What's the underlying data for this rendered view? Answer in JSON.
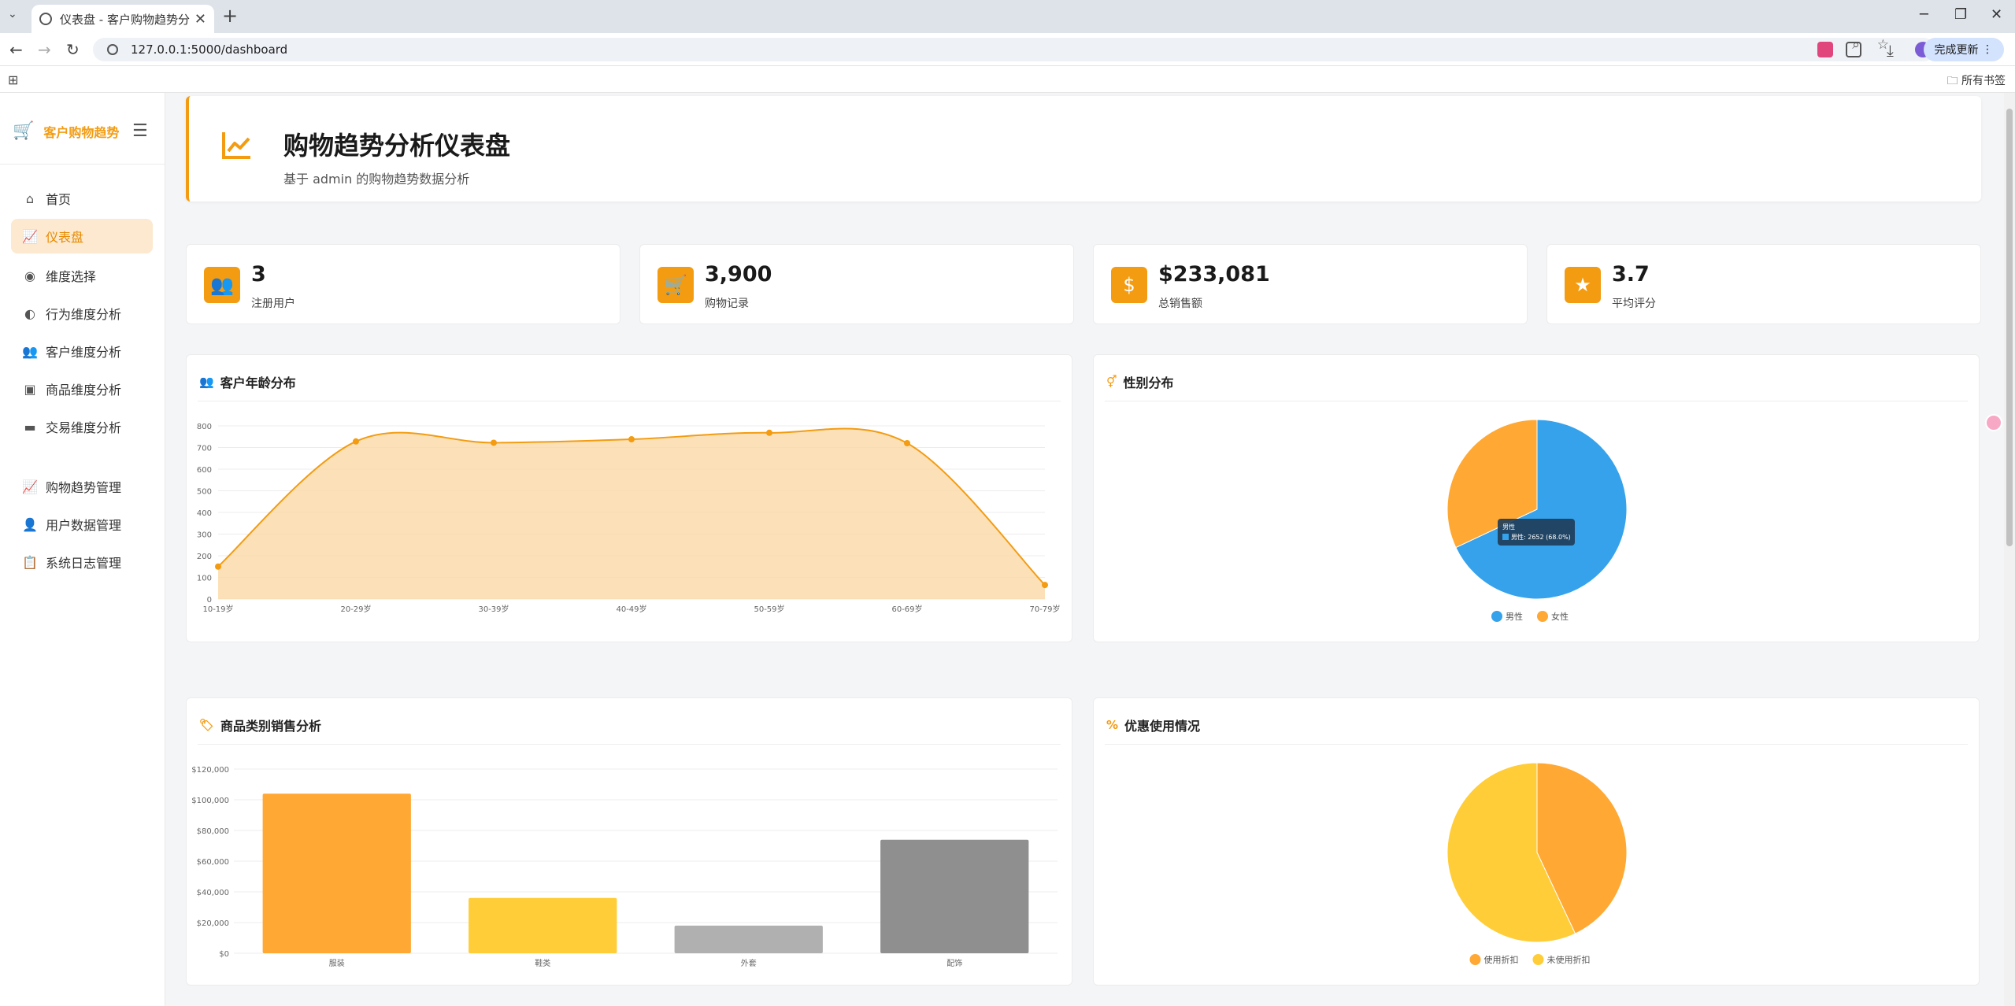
{
  "browser": {
    "tab_title": "仪表盘 - 客户购物趋势分析系统",
    "url": "127.0.0.1:5000/dashboard",
    "update_label": "完成更新",
    "bookmarks_label": "所有书签"
  },
  "sidebar": {
    "brand": "客户购物趋势",
    "items": [
      {
        "label": "首页",
        "icon": "home-icon"
      },
      {
        "label": "仪表盘",
        "icon": "chart-line-icon",
        "active": true
      },
      {
        "label": "维度选择",
        "icon": "compass-icon"
      },
      {
        "label": "行为维度分析",
        "icon": "brain-icon"
      },
      {
        "label": "客户维度分析",
        "icon": "users-icon"
      },
      {
        "label": "商品维度分析",
        "icon": "box-icon"
      },
      {
        "label": "交易维度分析",
        "icon": "credit-card-icon"
      },
      {
        "label": "购物趋势管理",
        "icon": "chart-line-icon"
      },
      {
        "label": "用户数据管理",
        "icon": "user-cog-icon"
      },
      {
        "label": "系统日志管理",
        "icon": "clipboard-icon"
      }
    ]
  },
  "header": {
    "title": "购物趋势分析仪表盘",
    "subtitle": "基于 admin 的购物趋势数据分析"
  },
  "stats": [
    {
      "value": "3",
      "label": "注册用户",
      "icon": "users-icon"
    },
    {
      "value": "3,900",
      "label": "购物记录",
      "icon": "cart-icon"
    },
    {
      "value": "$233,081",
      "label": "总销售额",
      "icon": "dollar-icon"
    },
    {
      "value": "3.7",
      "label": "平均评分",
      "icon": "star-icon"
    }
  ],
  "cards": {
    "age": "客户年龄分布",
    "gender": "性别分布",
    "category": "商品类别销售分析",
    "discount": "优惠使用情况"
  },
  "tooltip": {
    "title": "男性",
    "text": "男性: 2652 (68.0%)"
  },
  "colors": {
    "accent": "#f39c12",
    "blue": "#36a2eb",
    "orange": "#ffa833",
    "yellow": "#ffcd38",
    "gray_light": "#b0b0b0",
    "gray_dark": "#8f8f8f"
  },
  "chart_data": [
    {
      "type": "area",
      "title": "客户年龄分布",
      "categories": [
        "10-19岁",
        "20-29岁",
        "30-39岁",
        "40-49岁",
        "50-59岁",
        "60-69岁",
        "70-79岁"
      ],
      "values": [
        150,
        728,
        722,
        738,
        768,
        720,
        65
      ],
      "ylim": [
        0,
        800
      ],
      "yticks": [
        0,
        100,
        200,
        300,
        400,
        500,
        600,
        700,
        800
      ],
      "grid": true
    },
    {
      "type": "pie",
      "title": "性别分布",
      "labels": [
        "男性",
        "女性"
      ],
      "values": [
        2652,
        1248
      ],
      "legend": "bottom"
    },
    {
      "type": "bar",
      "title": "商品类别销售分析",
      "categories": [
        "服装",
        "鞋类",
        "外套",
        "配饰"
      ],
      "values": [
        104000,
        36000,
        18000,
        74000
      ],
      "ylim": [
        0,
        120000
      ],
      "ytick_labels": [
        "$0",
        "$20,000",
        "$40,000",
        "$60,000",
        "$80,000",
        "$100,000",
        "$120,000"
      ],
      "grid": true
    },
    {
      "type": "pie",
      "title": "优惠使用情况",
      "labels": [
        "使用折扣",
        "未使用折扣"
      ],
      "values": [
        43,
        57
      ],
      "legend": "bottom"
    }
  ]
}
